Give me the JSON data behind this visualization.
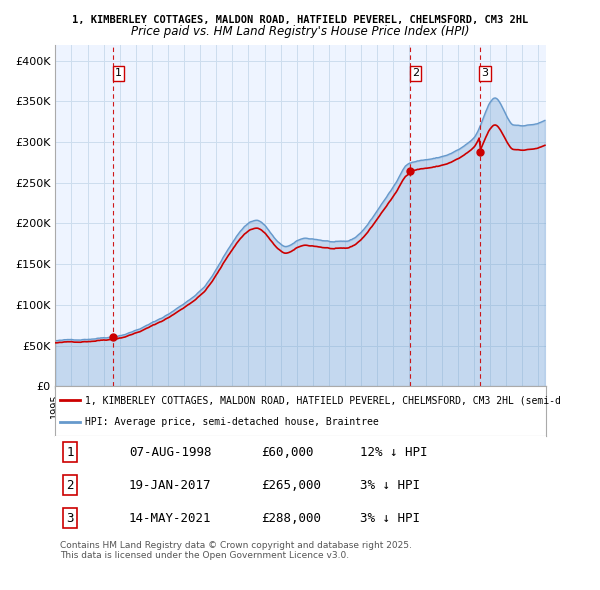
{
  "title_line1": "1, KIMBERLEY COTTAGES, MALDON ROAD, HATFIELD PEVEREL, CHELMSFORD, CM3 2HL",
  "title_line2": "Price paid vs. HM Land Registry's House Price Index (HPI)",
  "ylabel": "",
  "xlabel": "",
  "ylim": [
    0,
    420000
  ],
  "yticks": [
    0,
    50000,
    100000,
    150000,
    200000,
    250000,
    300000,
    350000,
    400000
  ],
  "ytick_labels": [
    "£0",
    "£50K",
    "£100K",
    "£150K",
    "£200K",
    "£250K",
    "£300K",
    "£350K",
    "£400K"
  ],
  "hpi_color": "#6699CC",
  "price_color": "#CC0000",
  "bg_color": "#EEF4FF",
  "grid_color": "#CCDDEE",
  "vline_color": "#CC0000",
  "transactions": [
    {
      "label": "1",
      "date_num": 1998.6,
      "price": 60000
    },
    {
      "label": "2",
      "date_num": 2017.05,
      "price": 265000
    },
    {
      "label": "3",
      "date_num": 2021.37,
      "price": 288000
    }
  ],
  "legend_property": "1, KIMBERLEY COTTAGES, MALDON ROAD, HATFIELD PEVEREL, CHELMSFORD, CM3 2HL (semi-d",
  "legend_hpi": "HPI: Average price, semi-detached house, Braintree",
  "footer": "Contains HM Land Registry data © Crown copyright and database right 2025.\nThis data is licensed under the Open Government Licence v3.0.",
  "table_rows": [
    [
      "1",
      "07-AUG-1998",
      "£60,000",
      "12% ↓ HPI"
    ],
    [
      "2",
      "19-JAN-2017",
      "£265,000",
      "3% ↓ HPI"
    ],
    [
      "3",
      "14-MAY-2021",
      "£288,000",
      "3% ↓ HPI"
    ]
  ]
}
